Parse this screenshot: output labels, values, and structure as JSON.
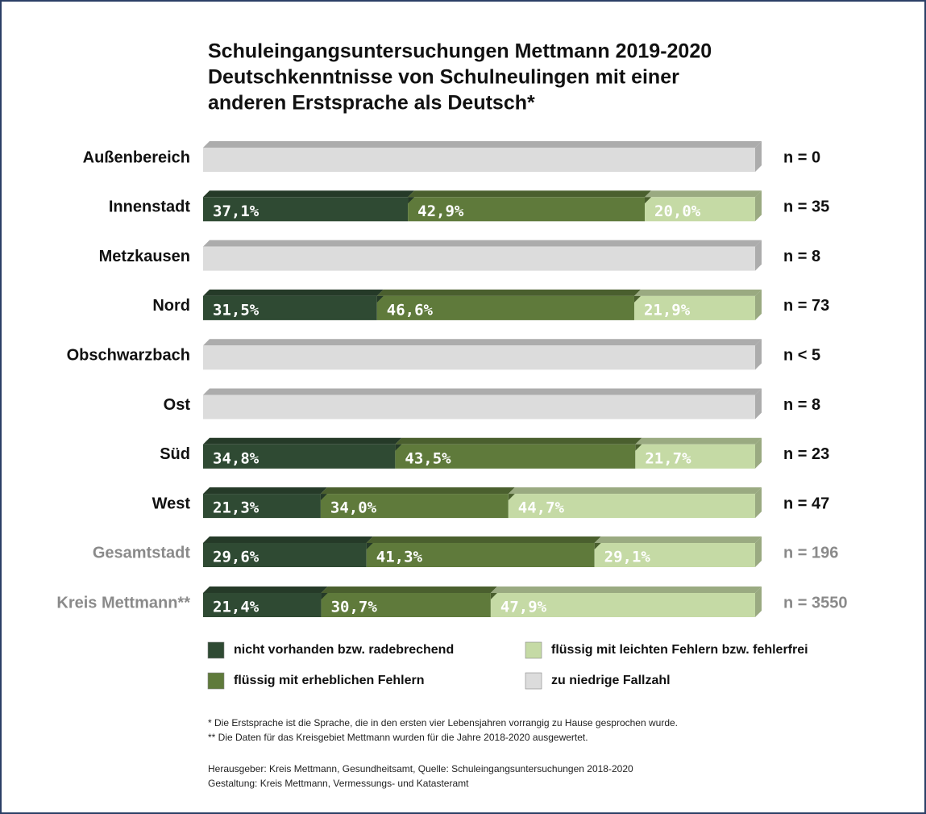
{
  "chart_data": {
    "type": "stacked_bar_horizontal",
    "title": [
      "Schuleingangsuntersuchungen Mettmann 2019-2020",
      "Deutschkenntnisse von Schulneulingen mit einer",
      "anderen Erstsprache als Deutsch*"
    ],
    "categories": [
      "Außenbereich",
      "Innenstadt",
      "Metzkausen",
      "Nord",
      "Obschwarzbach",
      "Ost",
      "Süd",
      "West",
      "Gesamtstadt",
      "Kreis Mettmann**"
    ],
    "category_colors": [
      "#111111",
      "#111111",
      "#111111",
      "#111111",
      "#111111",
      "#111111",
      "#111111",
      "#111111",
      "#8a8a8a",
      "#8a8a8a"
    ],
    "n_labels": [
      "n = 0",
      "n = 35",
      "n = 8",
      "n = 73",
      "n < 5",
      "n = 8",
      "n = 23",
      "n = 47",
      "n = 196",
      "n = 3550"
    ],
    "xlim": [
      0,
      100
    ],
    "series": [
      {
        "name": "nicht vorhanden bzw. radebrechend",
        "color": "#2f4a33",
        "values": [
          null,
          37.1,
          null,
          31.5,
          null,
          null,
          34.8,
          21.3,
          29.6,
          21.4
        ],
        "value_labels": [
          null,
          "37,1%",
          null,
          "31,5%",
          null,
          null,
          "34,8%",
          "21,3%",
          "29,6%",
          "21,4%"
        ]
      },
      {
        "name": "flüssig mit erheblichen Fehlern",
        "color": "#5f7a3b",
        "values": [
          null,
          42.9,
          null,
          46.6,
          null,
          null,
          43.5,
          34.0,
          41.3,
          30.7
        ],
        "value_labels": [
          null,
          "42,9%",
          null,
          "46,6%",
          null,
          null,
          "43,5%",
          "34,0%",
          "41,3%",
          "30,7%"
        ]
      },
      {
        "name": "flüssig mit leichten Fehlern bzw. fehlerfrei",
        "color": "#c5daa5",
        "values": [
          null,
          20.0,
          null,
          21.9,
          null,
          null,
          21.7,
          44.7,
          29.1,
          47.9
        ],
        "value_labels": [
          null,
          "20,0%",
          null,
          "21,9%",
          null,
          null,
          "21,7%",
          "44,7%",
          "29,1%",
          "47,9%"
        ]
      }
    ],
    "no_data_label": "zu niedrige Fallzahl",
    "no_data_color": "#dcdcdc",
    "footnotes": [
      "* Die Erstsprache ist die Sprache, die in den ersten vier Lebensjahren vorrangig zu Hause gesprochen wurde.",
      "** Die Daten für das Kreisgebiet Mettmann wurden für die Jahre 2018-2020 ausgewertet."
    ],
    "credits": [
      "Herausgeber: Kreis Mettmann, Gesundheitsamt, Quelle: Schuleingangsuntersuchungen 2018-2020",
      "Gestaltung: Kreis Mettmann, Vermessungs- und Katasteramt"
    ]
  }
}
